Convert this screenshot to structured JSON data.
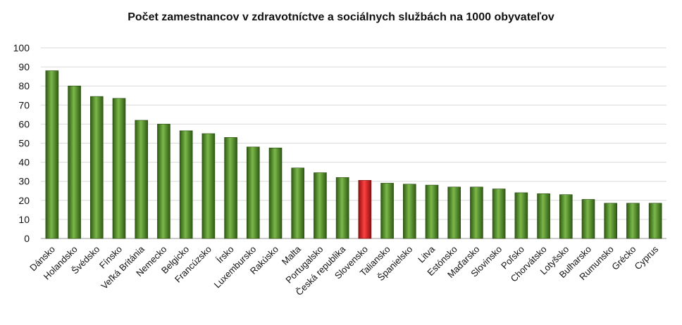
{
  "chart_data": {
    "type": "bar",
    "title": "Počet zamestnancov v zdravotníctve a sociálnych službách na 1000  obyvateľov",
    "xlabel": "",
    "ylabel": "",
    "ylim": [
      0,
      100
    ],
    "yticks": [
      0,
      10,
      20,
      30,
      40,
      50,
      60,
      70,
      80,
      90,
      100
    ],
    "grid": true,
    "legend": "none",
    "categories": [
      "Dánsko",
      "Holandsko",
      "Švédsko",
      "Fínsko",
      "Veľká Británia",
      "Nemecko",
      "Belgicko",
      "Francúzsko",
      "Írsko",
      "Luxembursko",
      "Rakúsko",
      "Malta",
      "Portugalsko",
      "Česká republika",
      "Slovensko",
      "Taliansko",
      "Španielsko",
      "Litva",
      "Estónsko",
      "Maďarsko",
      "Slovinsko",
      "Poľsko",
      "Chorvátsko",
      "Lotyšsko",
      "Bulharsko",
      "Rumunsko",
      "Grécko",
      "Cyprus"
    ],
    "values": [
      88,
      80,
      74.5,
      73.5,
      62,
      60,
      56.5,
      55,
      53,
      48,
      47.5,
      37,
      34.5,
      32,
      30.5,
      29,
      28.5,
      28,
      27,
      27,
      26,
      24,
      23.5,
      23,
      20.5,
      18.5,
      18.5,
      18.5
    ],
    "highlight_category": "Slovensko",
    "colors": {
      "bar": "#4e8a2a",
      "highlight": "#d81e1e",
      "grid": "#d9d9d9"
    }
  }
}
